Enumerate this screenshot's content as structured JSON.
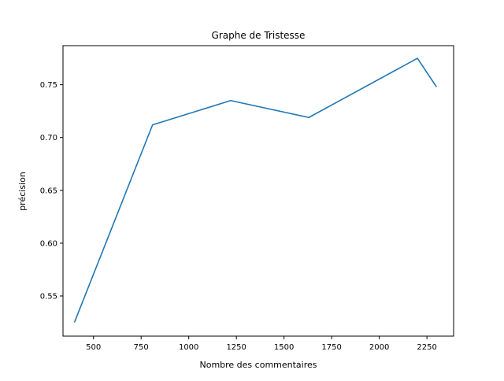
{
  "chart_data": {
    "type": "line",
    "title": "Graphe de Tristesse",
    "xlabel": "Nombre des commentaires",
    "ylabel": "précision",
    "xlim": [
      340,
      2390
    ],
    "ylim": [
      0.512,
      0.787
    ],
    "xticks": [
      500,
      750,
      1000,
      1250,
      1500,
      1750,
      2000,
      2250
    ],
    "yticks": [
      0.55,
      0.6,
      0.65,
      0.7,
      0.75
    ],
    "ytick_labels": [
      "0.55",
      "0.60",
      "0.65",
      "0.70",
      "0.75"
    ],
    "grid": false,
    "series": [
      {
        "color": "#1f77b4",
        "x": [
          400,
          810,
          1220,
          1630,
          2200,
          2300
        ],
        "y": [
          0.525,
          0.712,
          0.735,
          0.719,
          0.775,
          0.748
        ]
      }
    ]
  }
}
